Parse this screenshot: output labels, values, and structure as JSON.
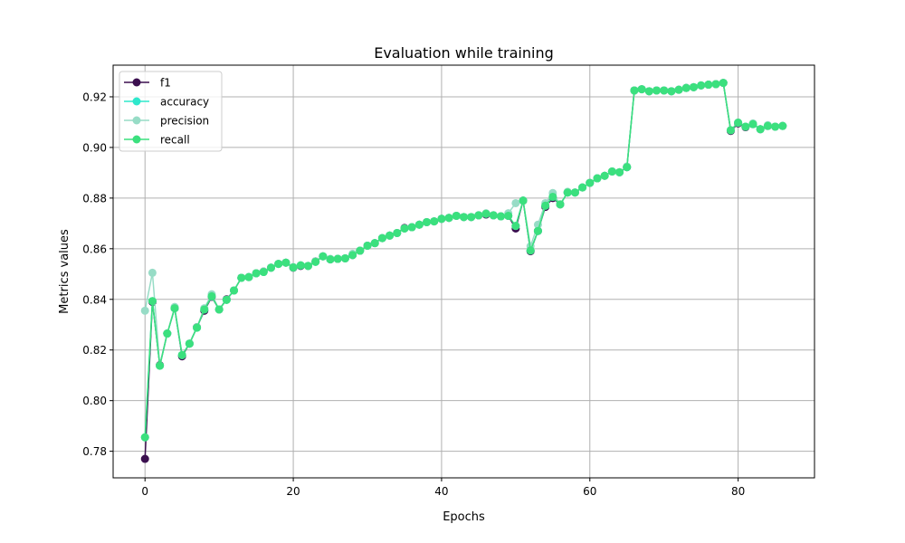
{
  "chart_data": {
    "type": "line",
    "title": "Evaluation while training",
    "xlabel": "Epochs",
    "ylabel": "Metrics values",
    "xlim": [
      -4.3,
      90.3
    ],
    "ylim": [
      0.7695,
      0.9325
    ],
    "x_ticks": [
      0,
      20,
      40,
      60,
      80
    ],
    "y_ticks": [
      0.78,
      0.8,
      0.82,
      0.84,
      0.86,
      0.88,
      0.9,
      0.92
    ],
    "x_tick_labels": [
      "0",
      "20",
      "40",
      "60",
      "80"
    ],
    "y_tick_labels": [
      "0.78",
      "0.80",
      "0.82",
      "0.84",
      "0.86",
      "0.88",
      "0.90",
      "0.92"
    ],
    "grid": true,
    "legend_position": "top-left",
    "x": [
      0,
      1,
      2,
      3,
      4,
      5,
      6,
      7,
      8,
      9,
      10,
      11,
      12,
      13,
      14,
      15,
      16,
      17,
      18,
      19,
      20,
      21,
      22,
      23,
      24,
      25,
      26,
      27,
      28,
      29,
      30,
      31,
      32,
      33,
      34,
      35,
      36,
      37,
      38,
      39,
      40,
      41,
      42,
      43,
      44,
      45,
      46,
      47,
      48,
      49,
      50,
      51,
      52,
      53,
      54,
      55,
      56,
      57,
      58,
      59,
      60,
      61,
      62,
      63,
      64,
      65,
      66,
      67,
      68,
      69,
      70,
      71,
      72,
      73,
      74,
      75,
      76,
      77,
      78,
      79,
      80,
      81,
      82,
      83,
      84,
      85,
      86
    ],
    "series": [
      {
        "name": "f1",
        "color": "#3b0f4f",
        "values": [
          0.777,
          0.839,
          0.814,
          0.8265,
          0.8365,
          0.8175,
          0.8225,
          0.829,
          0.8355,
          0.841,
          0.836,
          0.84,
          0.8435,
          0.8485,
          0.8488,
          0.8503,
          0.851,
          0.8525,
          0.854,
          0.8545,
          0.8525,
          0.8532,
          0.8532,
          0.855,
          0.857,
          0.8558,
          0.856,
          0.8562,
          0.8575,
          0.8592,
          0.8612,
          0.8622,
          0.8642,
          0.8652,
          0.8662,
          0.8682,
          0.8685,
          0.8695,
          0.8705,
          0.8708,
          0.8718,
          0.8722,
          0.873,
          0.8725,
          0.8725,
          0.8732,
          0.8735,
          0.8732,
          0.8728,
          0.873,
          0.868,
          0.879,
          0.859,
          0.867,
          0.8765,
          0.88,
          0.8775,
          0.8822,
          0.8822,
          0.8842,
          0.886,
          0.8878,
          0.8888,
          0.8905,
          0.8902,
          0.8922,
          0.9225,
          0.923,
          0.9222,
          0.9225,
          0.9225,
          0.9222,
          0.9228,
          0.9235,
          0.9238,
          0.9245,
          0.9248,
          0.925,
          0.9255,
          0.9065,
          0.9095,
          0.908,
          0.9092,
          0.9072,
          0.9085,
          0.9082,
          0.9085
        ]
      },
      {
        "name": "accuracy",
        "color": "#2ee8cc",
        "values": [
          0.7855,
          0.8393,
          0.8138,
          0.8265,
          0.8365,
          0.818,
          0.8225,
          0.8288,
          0.836,
          0.8412,
          0.836,
          0.8398,
          0.8435,
          0.8485,
          0.8488,
          0.8503,
          0.8508,
          0.8525,
          0.854,
          0.8545,
          0.8526,
          0.8534,
          0.8532,
          0.8548,
          0.857,
          0.8558,
          0.856,
          0.8562,
          0.8575,
          0.8592,
          0.8612,
          0.8622,
          0.8642,
          0.8652,
          0.8662,
          0.868,
          0.8685,
          0.8695,
          0.8705,
          0.8708,
          0.8718,
          0.8722,
          0.873,
          0.8725,
          0.8725,
          0.8732,
          0.8738,
          0.8732,
          0.8728,
          0.873,
          0.869,
          0.879,
          0.8593,
          0.867,
          0.877,
          0.8805,
          0.8775,
          0.8822,
          0.8822,
          0.8842,
          0.886,
          0.8878,
          0.8888,
          0.8905,
          0.8902,
          0.8922,
          0.9225,
          0.923,
          0.9222,
          0.9225,
          0.9225,
          0.9222,
          0.9228,
          0.9235,
          0.9238,
          0.9245,
          0.9248,
          0.925,
          0.9255,
          0.9068,
          0.9098,
          0.9082,
          0.9092,
          0.9072,
          0.9085,
          0.9082,
          0.9085
        ]
      },
      {
        "name": "precision",
        "color": "#97dcc6",
        "values": [
          0.8355,
          0.8505,
          0.8138,
          0.8265,
          0.837,
          0.818,
          0.8225,
          0.829,
          0.8365,
          0.842,
          0.836,
          0.8398,
          0.8435,
          0.8485,
          0.8488,
          0.8503,
          0.851,
          0.8525,
          0.854,
          0.8545,
          0.8528,
          0.8535,
          0.8532,
          0.855,
          0.857,
          0.856,
          0.856,
          0.8562,
          0.858,
          0.8592,
          0.8612,
          0.8622,
          0.8642,
          0.8652,
          0.8662,
          0.868,
          0.8685,
          0.8695,
          0.8705,
          0.8708,
          0.8718,
          0.8722,
          0.873,
          0.8725,
          0.8725,
          0.8732,
          0.874,
          0.8732,
          0.8728,
          0.874,
          0.878,
          0.879,
          0.861,
          0.8695,
          0.878,
          0.882,
          0.8775,
          0.8825,
          0.8822,
          0.8842,
          0.886,
          0.8878,
          0.8888,
          0.8905,
          0.8902,
          0.8925,
          0.9225,
          0.923,
          0.9222,
          0.9225,
          0.9225,
          0.9222,
          0.9228,
          0.9235,
          0.9238,
          0.9245,
          0.9248,
          0.925,
          0.9255,
          0.9068,
          0.9098,
          0.9082,
          0.9095,
          0.9072,
          0.9088,
          0.9082,
          0.9085
        ]
      },
      {
        "name": "recall",
        "color": "#3be07e",
        "values": [
          0.7855,
          0.8393,
          0.8138,
          0.8265,
          0.8365,
          0.818,
          0.8225,
          0.8288,
          0.836,
          0.8412,
          0.836,
          0.8398,
          0.8435,
          0.8485,
          0.8488,
          0.8503,
          0.8508,
          0.8525,
          0.854,
          0.8545,
          0.8526,
          0.8534,
          0.8532,
          0.8548,
          0.857,
          0.8558,
          0.856,
          0.8562,
          0.8575,
          0.8592,
          0.8612,
          0.8622,
          0.8642,
          0.8652,
          0.8662,
          0.868,
          0.8685,
          0.8695,
          0.8705,
          0.8708,
          0.8718,
          0.8722,
          0.873,
          0.8725,
          0.8725,
          0.8732,
          0.8738,
          0.8732,
          0.8728,
          0.873,
          0.869,
          0.879,
          0.8593,
          0.867,
          0.877,
          0.8805,
          0.8775,
          0.8822,
          0.8822,
          0.8842,
          0.886,
          0.8878,
          0.8888,
          0.8905,
          0.8902,
          0.8922,
          0.9225,
          0.923,
          0.9222,
          0.9225,
          0.9225,
          0.9222,
          0.9228,
          0.9235,
          0.9238,
          0.9245,
          0.9248,
          0.925,
          0.9255,
          0.9068,
          0.9098,
          0.9082,
          0.9092,
          0.9072,
          0.9085,
          0.9082,
          0.9085
        ]
      }
    ]
  }
}
